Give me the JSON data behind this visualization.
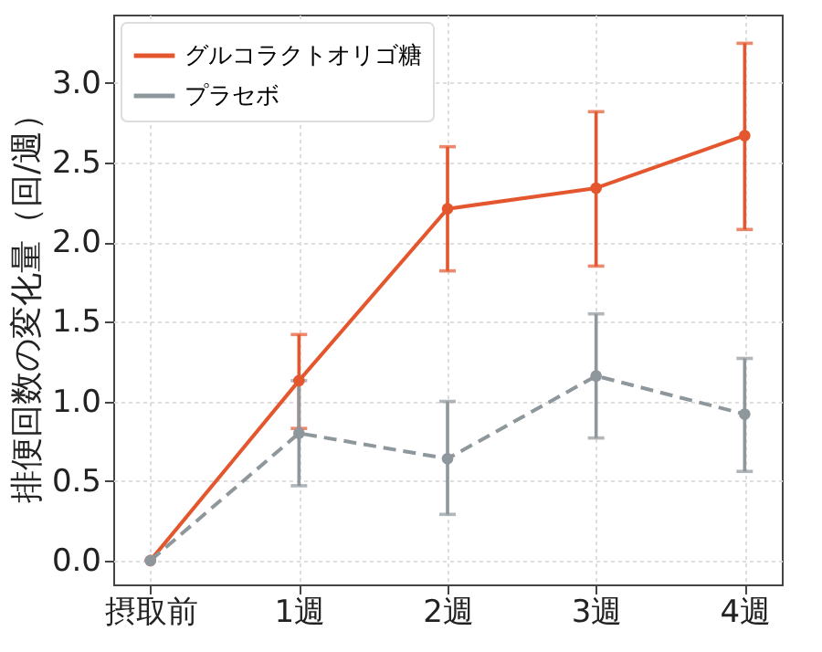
{
  "chart_data": {
    "type": "line",
    "ylabel": "排便回数の変化量（回/週）",
    "categories": [
      "摂取前",
      "1週",
      "2週",
      "3週",
      "4週"
    ],
    "series": [
      {
        "name": "グルコラクトオリゴ糖",
        "color": "#e4572e",
        "line_style": "solid",
        "values": [
          0.0,
          1.13,
          2.21,
          2.34,
          2.67
        ],
        "errors": [
          null,
          [
            0.83,
            1.42
          ],
          [
            1.82,
            2.6
          ],
          [
            1.85,
            2.82
          ],
          [
            2.08,
            3.25
          ]
        ]
      },
      {
        "name": "プラセボ",
        "color": "#8e979b",
        "line_style": "dashed",
        "values": [
          0.0,
          0.8,
          0.64,
          1.16,
          0.92
        ],
        "errors": [
          null,
          [
            0.47,
            1.13
          ],
          [
            0.29,
            1.0
          ],
          [
            0.77,
            1.55
          ],
          [
            0.56,
            1.27
          ]
        ]
      }
    ],
    "ylim": [
      -0.15,
      3.43
    ],
    "yticks": [
      {
        "value": 0,
        "label": "0.0"
      },
      0.5,
      {
        "value": 1,
        "label": "1.0"
      },
      1.5,
      {
        "value": 2,
        "label": "2.0"
      },
      2.5,
      {
        "value": 3,
        "label": "3.0"
      }
    ],
    "grid": true,
    "legend": "top left",
    "marker": "circle"
  }
}
